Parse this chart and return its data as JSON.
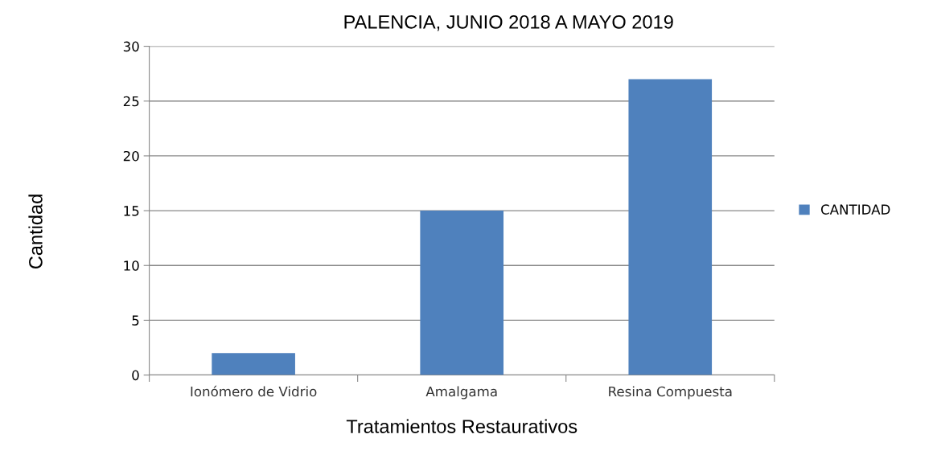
{
  "chart_data": {
    "type": "bar",
    "title": "PALENCIA, JUNIO 2018 A MAYO 2019",
    "xlabel": "Tratamientos Restaurativos",
    "ylabel": "Cantidad",
    "categories": [
      "Ionómero de Vidrio",
      "Amalgama",
      "Resina Compuesta"
    ],
    "series": [
      {
        "name": "CANTIDAD",
        "color": "#4f81bd",
        "values": [
          2,
          15,
          27
        ]
      }
    ],
    "ylim": [
      0,
      30
    ],
    "yticks": [
      0,
      5,
      10,
      15,
      20,
      25,
      30
    ],
    "grid": "y",
    "legend": "right"
  }
}
